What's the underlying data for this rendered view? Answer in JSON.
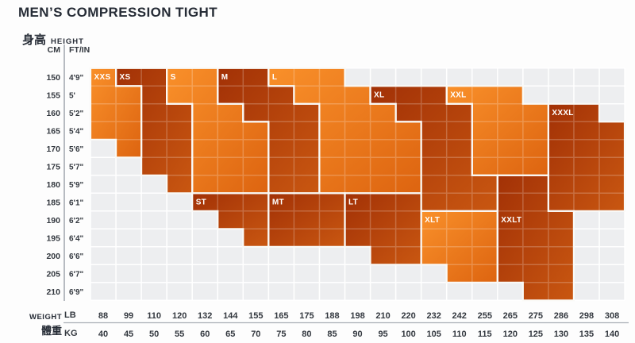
{
  "title": "MEN’S COMPRESSION TIGHT",
  "header": {
    "height_zh": "身高",
    "height_en": "HEIGHT",
    "cm": "CM",
    "ftin": "FT/IN",
    "weight_en": "WEIGHT",
    "weight_zh": "體重",
    "lb": "LB",
    "kg": "KG"
  },
  "chart_data": {
    "type": "heatmap",
    "title": "MEN’S COMPRESSION TIGHT",
    "x_axis": {
      "label_top": "LB",
      "label_bottom": "KG",
      "lb": [
        88,
        99,
        110,
        120,
        132,
        144,
        155,
        165,
        175,
        188,
        198,
        210,
        220,
        232,
        242,
        255,
        265,
        275,
        286,
        298,
        308
      ],
      "kg": [
        40,
        45,
        50,
        55,
        60,
        65,
        70,
        75,
        80,
        85,
        90,
        95,
        100,
        105,
        110,
        115,
        120,
        125,
        130,
        135,
        140
      ]
    },
    "y_axis": {
      "label_left": "CM",
      "label_right": "FT/IN",
      "cm": [
        150,
        155,
        160,
        165,
        170,
        175,
        180,
        185,
        190,
        195,
        200,
        205,
        210
      ],
      "ftin": [
        "4'9\"",
        "5'",
        "5'2\"",
        "5'4\"",
        "5'6\"",
        "5'7\"",
        "5'9\"",
        "6'1\"",
        "6'2\"",
        "6'4\"",
        "6'6\"",
        "6'7\"",
        "6'9\""
      ]
    },
    "colors": {
      "light_region_start": "#F9902A",
      "light_region_end": "#DD6410",
      "dark_region_start": "#A23106",
      "dark_region_end": "#C95711",
      "grid_bg": "#EDEEF0",
      "grid_line": "#FFFFFF",
      "region_border": "#FAFAF7",
      "label_text": "#FFFFFF",
      "axis_text": "#33383F",
      "title_text": "#262C36",
      "rule": "#A9AEB5"
    },
    "regions": [
      {
        "size": "XXS",
        "tone": "light",
        "label_cell": [
          0,
          0
        ],
        "outline": [
          [
            0,
            0
          ],
          [
            1,
            0
          ],
          [
            1,
            1
          ],
          [
            2,
            1
          ],
          [
            2,
            5
          ],
          [
            1,
            5
          ],
          [
            1,
            4
          ],
          [
            0,
            4
          ]
        ]
      },
      {
        "size": "XS",
        "tone": "dark",
        "label_cell": [
          1,
          0
        ],
        "outline": [
          [
            1,
            0
          ],
          [
            3,
            0
          ],
          [
            3,
            2
          ],
          [
            4,
            2
          ],
          [
            4,
            7
          ],
          [
            3,
            7
          ],
          [
            3,
            6
          ],
          [
            2,
            6
          ],
          [
            2,
            1
          ],
          [
            1,
            1
          ]
        ]
      },
      {
        "size": "S",
        "tone": "light",
        "label_cell": [
          3,
          0
        ],
        "outline": [
          [
            3,
            0
          ],
          [
            5,
            0
          ],
          [
            5,
            2
          ],
          [
            6,
            2
          ],
          [
            6,
            3
          ],
          [
            7,
            3
          ],
          [
            7,
            7
          ],
          [
            4,
            7
          ],
          [
            4,
            2
          ],
          [
            3,
            2
          ]
        ]
      },
      {
        "size": "M",
        "tone": "dark",
        "label_cell": [
          5,
          0
        ],
        "outline": [
          [
            5,
            0
          ],
          [
            7,
            0
          ],
          [
            7,
            1
          ],
          [
            8,
            1
          ],
          [
            8,
            2
          ],
          [
            9,
            2
          ],
          [
            9,
            7
          ],
          [
            7,
            7
          ],
          [
            7,
            3
          ],
          [
            6,
            3
          ],
          [
            6,
            2
          ],
          [
            5,
            2
          ]
        ]
      },
      {
        "size": "L",
        "tone": "light",
        "label_cell": [
          7,
          0
        ],
        "outline": [
          [
            7,
            0
          ],
          [
            10,
            0
          ],
          [
            10,
            1
          ],
          [
            11,
            1
          ],
          [
            11,
            2
          ],
          [
            12,
            2
          ],
          [
            12,
            3
          ],
          [
            13,
            3
          ],
          [
            13,
            7
          ],
          [
            9,
            7
          ],
          [
            9,
            2
          ],
          [
            8,
            2
          ],
          [
            8,
            1
          ],
          [
            7,
            1
          ]
        ]
      },
      {
        "size": "XL",
        "tone": "dark",
        "label_cell": [
          11,
          1
        ],
        "outline": [
          [
            11,
            1
          ],
          [
            14,
            1
          ],
          [
            14,
            2
          ],
          [
            15,
            2
          ],
          [
            15,
            6
          ],
          [
            16,
            6
          ],
          [
            16,
            8
          ],
          [
            13,
            8
          ],
          [
            13,
            3
          ],
          [
            12,
            3
          ],
          [
            12,
            2
          ],
          [
            11,
            2
          ]
        ]
      },
      {
        "size": "XXL",
        "tone": "light",
        "label_cell": [
          14,
          1
        ],
        "outline": [
          [
            14,
            1
          ],
          [
            17,
            1
          ],
          [
            17,
            2
          ],
          [
            18,
            2
          ],
          [
            18,
            6
          ],
          [
            15,
            6
          ],
          [
            15,
            2
          ],
          [
            14,
            2
          ]
        ]
      },
      {
        "size": "XXXL",
        "tone": "dark",
        "label_cell": [
          18,
          2
        ],
        "outline": [
          [
            18,
            2
          ],
          [
            20,
            2
          ],
          [
            20,
            3
          ],
          [
            21,
            3
          ],
          [
            21,
            8
          ],
          [
            18,
            8
          ]
        ]
      },
      {
        "size": "ST",
        "tone": "dark",
        "label_cell": [
          4,
          7
        ],
        "outline": [
          [
            4,
            7
          ],
          [
            7,
            7
          ],
          [
            7,
            10
          ],
          [
            6,
            10
          ],
          [
            6,
            9
          ],
          [
            5,
            9
          ],
          [
            5,
            8
          ],
          [
            4,
            8
          ]
        ]
      },
      {
        "size": "MT",
        "tone": "dark",
        "label_cell": [
          7,
          7
        ],
        "outline": [
          [
            7,
            7
          ],
          [
            10,
            7
          ],
          [
            10,
            10
          ],
          [
            7,
            10
          ]
        ]
      },
      {
        "size": "LT",
        "tone": "dark",
        "label_cell": [
          10,
          7
        ],
        "outline": [
          [
            10,
            7
          ],
          [
            13,
            7
          ],
          [
            13,
            11
          ],
          [
            11,
            11
          ],
          [
            11,
            10
          ],
          [
            10,
            10
          ]
        ]
      },
      {
        "size": "XLT",
        "tone": "light",
        "label_cell": [
          13,
          8
        ],
        "outline": [
          [
            13,
            8
          ],
          [
            16,
            8
          ],
          [
            16,
            12
          ],
          [
            14,
            12
          ],
          [
            14,
            11
          ],
          [
            13,
            11
          ]
        ]
      },
      {
        "size": "XXLT",
        "tone": "dark",
        "label_cell": [
          16,
          8
        ],
        "outline": [
          [
            16,
            6
          ],
          [
            18,
            6
          ],
          [
            18,
            8
          ],
          [
            19,
            8
          ],
          [
            19,
            13
          ],
          [
            17,
            13
          ],
          [
            17,
            12
          ],
          [
            16,
            12
          ]
        ]
      }
    ]
  }
}
